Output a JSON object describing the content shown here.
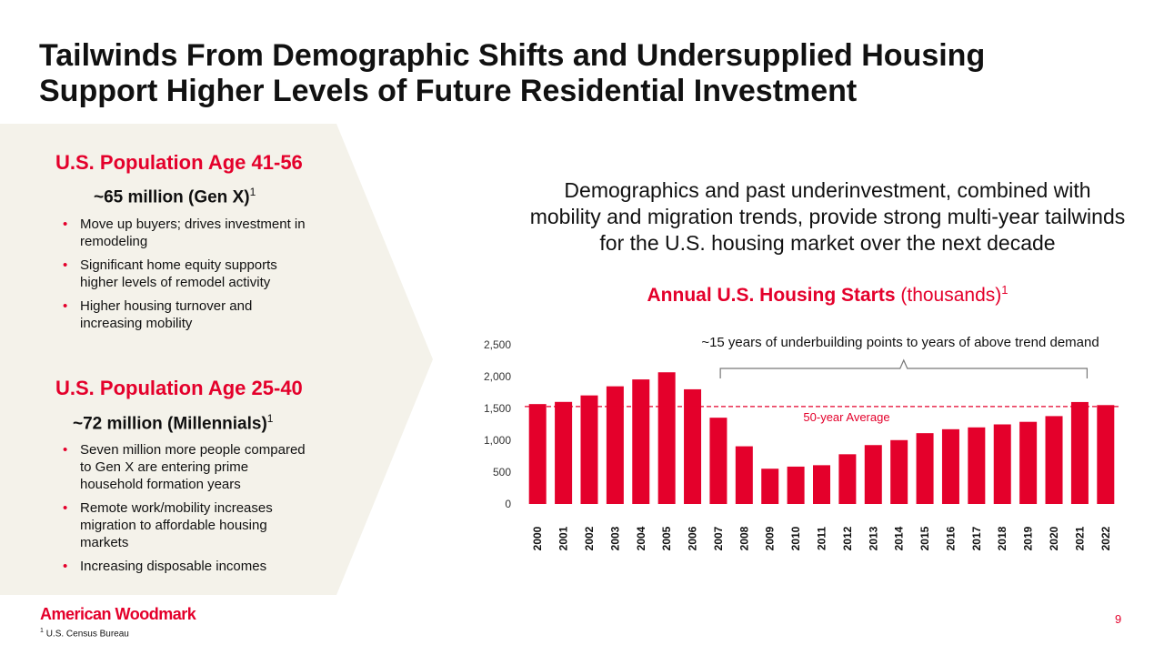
{
  "slide": {
    "title_line1": "Tailwinds From Demographic Shifts and Undersupplied Housing",
    "title_line2": "Support Higher Levels of Future Residential Investment",
    "page_number": "9",
    "logo_text": "American Woodmark",
    "footnote_marker": "1",
    "footnote_text": "U.S. Census Bureau"
  },
  "genx": {
    "heading": "U.S. Population Age 41-56",
    "subheading": "~65 million (Gen X)",
    "sup": "1",
    "bullets": [
      "Move up buyers; drives investment in remodeling",
      "Significant home equity supports higher levels of remodel activity",
      "Higher housing turnover and increasing mobility"
    ]
  },
  "millennials": {
    "heading": "U.S. Population Age 25-40",
    "subheading": "~72 million (Millennials)",
    "sup": "1",
    "bullets": [
      "Seven million more people compared to Gen X are entering prime household formation years",
      "Remote work/mobility increases migration to affordable housing markets",
      "Increasing disposable incomes"
    ]
  },
  "intro_text": "Demographics and past underinvestment, combined with mobility and migration trends, provide strong multi-year tailwinds for the U.S. housing market over the next decade",
  "chart_title": {
    "bold": "Annual U.S. Housing Starts",
    "normal": " (thousands)",
    "sup": "1"
  },
  "chart_data": {
    "type": "bar",
    "categories": [
      "2000",
      "2001",
      "2002",
      "2003",
      "2004",
      "2005",
      "2006",
      "2007",
      "2008",
      "2009",
      "2010",
      "2011",
      "2012",
      "2013",
      "2014",
      "2015",
      "2016",
      "2017",
      "2018",
      "2019",
      "2020",
      "2021",
      "2022"
    ],
    "values": [
      1569,
      1603,
      1705,
      1848,
      1956,
      2068,
      1801,
      1355,
      906,
      554,
      587,
      609,
      781,
      925,
      1003,
      1112,
      1174,
      1203,
      1250,
      1290,
      1380,
      1601,
      1553
    ],
    "ylim": [
      0,
      2500
    ],
    "yticks": [
      0,
      500,
      1000,
      1500,
      2000,
      2500
    ],
    "ytick_labels": [
      "0",
      "500",
      "1,000",
      "1,500",
      "2,000",
      "2,500"
    ],
    "average": {
      "label": "50-year Average",
      "value": 1530
    },
    "annotation": {
      "text": "~15 years of underbuilding points to years of above trend demand",
      "from": "2008",
      "to": "2021"
    },
    "bar_color": "#e4002b",
    "grid": false
  }
}
